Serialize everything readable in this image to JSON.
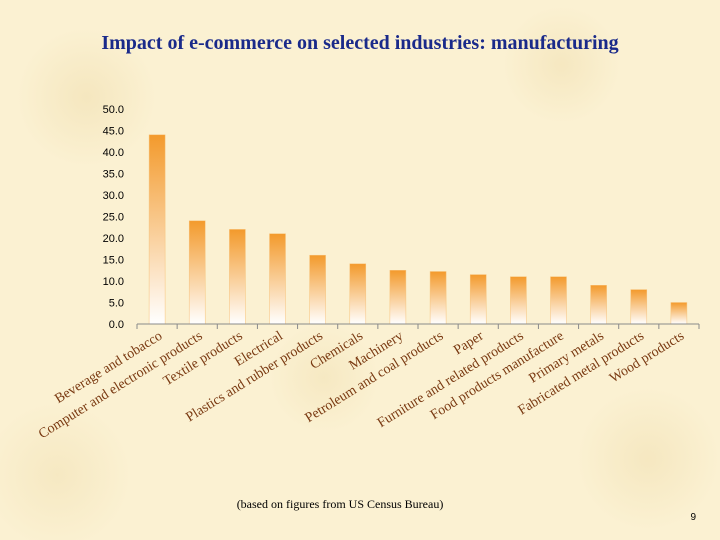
{
  "slide": {
    "title": "Impact of e-commerce on selected industries: manufacturing",
    "source_note": "(based on figures from US Census Bureau)",
    "page_number": "9"
  },
  "colors": {
    "background": "#fbf1d2",
    "title": "#1a2a8a",
    "bar_top": "#f39a2c",
    "bar_bottom": "#ffffff",
    "category_label": "#7a3a12"
  },
  "chart_data": {
    "type": "bar",
    "title": "",
    "xlabel": "",
    "ylabel": "",
    "ylim": [
      0,
      50
    ],
    "yticks": [
      "0.0",
      "5.0",
      "10.0",
      "15.0",
      "20.0",
      "25.0",
      "30.0",
      "35.0",
      "40.0",
      "45.0",
      "50.0"
    ],
    "grid": false,
    "categories": [
      "Beverage and tobacco",
      "Computer and electronic products",
      "Textile products",
      "Electrical",
      "Plastics and rubber products",
      "Chemicals",
      "Machinery",
      "Petroleum and coal products",
      "Paper",
      "Furniture and related products",
      "Food products manufacture",
      "Primary metals",
      "Fabricated metal products",
      "Wood products"
    ],
    "values": [
      44.0,
      24.0,
      22.0,
      21.0,
      16.0,
      14.0,
      12.5,
      12.2,
      11.5,
      11.0,
      11.0,
      9.0,
      8.0,
      5.0
    ]
  }
}
